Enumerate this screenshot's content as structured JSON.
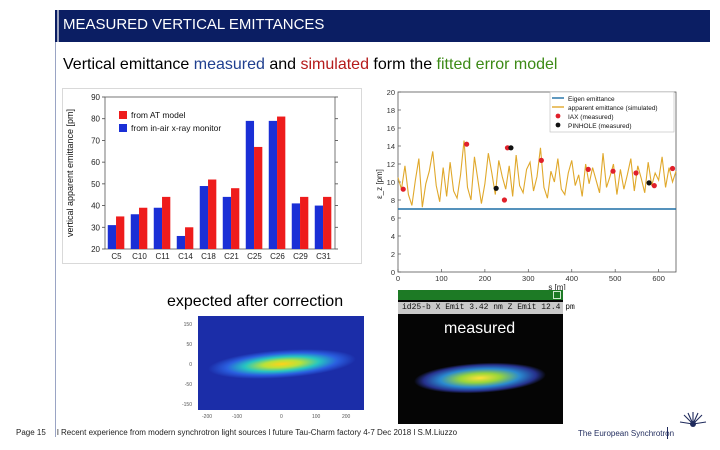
{
  "header": {
    "title": "MEASURED VERTICAL EMITTANCES"
  },
  "subtitle": {
    "part1": "Vertical emittance ",
    "measured": "measured",
    "part2": " and ",
    "simulated": "simulated",
    "part3": " form the ",
    "fitted": "fitted error model"
  },
  "captions": {
    "expected": "expected after correction",
    "measured": "measured"
  },
  "colors": {
    "header_bg": "#0b1e63",
    "measured_text": "#1f3f8f",
    "simulated_text": "#b51a1a",
    "fitted_text": "#3c8a16",
    "at_model": "#ee1c1c",
    "xray_monitor": "#1a2fd6",
    "eigen_line": "#1d6fa5",
    "apparent_line": "#e0a82b"
  },
  "measured_image": {
    "status_text": "id25-b   X Emit 3.42 nm  Z Emit 12.4 pm"
  },
  "footer": {
    "page": "Page 15",
    "text": "l Recent experience from modern synchrotron light sources l future Tau-Charm factory 4-7 Dec 2018 l S.M.Liuzzo",
    "brand": "The European Synchrotron",
    "logo_text": "ESRF"
  },
  "chart_data": [
    {
      "type": "bar",
      "ylabel": "vertical apparent emittance [pm]",
      "xlabel": "",
      "ylim": [
        20,
        90
      ],
      "yticks": [
        20,
        30,
        40,
        50,
        60,
        70,
        80,
        90
      ],
      "categories": [
        "C5",
        "C10",
        "C11",
        "C14",
        "C18",
        "C21",
        "C25",
        "C26",
        "C29",
        "C31"
      ],
      "legend_position": "top-left",
      "series": [
        {
          "name": "from AT model",
          "color": "#ee1c1c",
          "values": [
            35,
            39,
            44,
            30,
            52,
            48,
            67,
            81,
            44,
            44
          ]
        },
        {
          "name": "from in-air x-ray monitor",
          "color": "#1a2fd6",
          "values": [
            31,
            36,
            39,
            26,
            49,
            44,
            79,
            79,
            41,
            40
          ]
        }
      ]
    },
    {
      "type": "line",
      "xlabel": "s [m]",
      "ylabel": "ε_z [pm]",
      "xlim": [
        0,
        640
      ],
      "ylim": [
        0,
        20
      ],
      "xticks": [
        0,
        100,
        200,
        300,
        400,
        500,
        600
      ],
      "yticks": [
        0,
        2,
        4,
        6,
        8,
        10,
        12,
        14,
        16,
        18,
        20
      ],
      "legend_position": "top-right",
      "eigen_emittance": 7,
      "series": [
        {
          "name": "Eigen emittance",
          "color": "#1d6fa5",
          "x": [
            0,
            640
          ],
          "y": [
            7,
            7
          ]
        },
        {
          "name": "apparent emittance (simulated)",
          "color": "#e0a82b",
          "x": [
            0,
            8,
            16,
            24,
            32,
            40,
            48,
            56,
            64,
            72,
            80,
            88,
            96,
            104,
            112,
            120,
            128,
            136,
            144,
            152,
            160,
            168,
            176,
            184,
            192,
            200,
            208,
            216,
            224,
            232,
            240,
            248,
            256,
            264,
            272,
            280,
            288,
            296,
            304,
            312,
            320,
            328,
            336,
            344,
            352,
            360,
            368,
            376,
            384,
            392,
            400,
            408,
            416,
            424,
            432,
            440,
            448,
            456,
            464,
            472,
            480,
            488,
            496,
            504,
            512,
            520,
            528,
            536,
            544,
            552,
            560,
            568,
            576,
            584,
            592,
            600,
            608,
            616,
            624,
            632,
            640
          ],
          "y": [
            10.5,
            9.2,
            11.8,
            8.6,
            7.4,
            10.2,
            12.6,
            7.2,
            9.8,
            11.2,
            13.4,
            9.6,
            7.8,
            11.6,
            8.4,
            12.2,
            9.0,
            8.2,
            10.8,
            14.6,
            9.4,
            8.0,
            12.8,
            10.2,
            7.6,
            9.8,
            13.2,
            11.0,
            8.6,
            12.4,
            10.6,
            9.2,
            11.8,
            8.4,
            13.0,
            9.6,
            8.8,
            11.4,
            12.2,
            9.0,
            10.6,
            13.8,
            9.4,
            8.2,
            11.2,
            10.0,
            12.6,
            9.2,
            8.6,
            11.0,
            12.4,
            9.6,
            10.8,
            8.4,
            12.0,
            9.8,
            11.6,
            10.2,
            8.8,
            13.2,
            9.4,
            10.6,
            12.0,
            8.6,
            11.4,
            9.2,
            10.8,
            12.6,
            9.0,
            11.8,
            10.4,
            8.8,
            12.2,
            9.6,
            11.0,
            10.2,
            12.8,
            9.4,
            11.6,
            10.0,
            11.2
          ]
        },
        {
          "name": "IAX (measured)",
          "color": "#e0202a",
          "x": [
            12,
            158,
            245,
            252,
            330,
            438,
            495,
            548,
            590,
            632
          ],
          "y": [
            9.2,
            14.2,
            8.0,
            13.8,
            12.4,
            11.4,
            11.2,
            11.0,
            9.6,
            11.5
          ]
        },
        {
          "name": "PINHOLE (measured)",
          "color": "#111111",
          "x": [
            226,
            260,
            578
          ],
          "y": [
            9.3,
            13.8,
            9.9
          ]
        }
      ]
    }
  ]
}
